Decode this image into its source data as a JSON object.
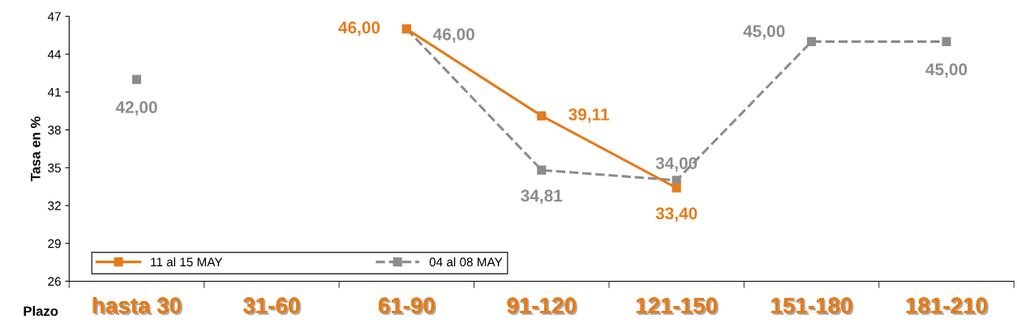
{
  "chart_data": {
    "type": "line",
    "xlabel": "Plazo",
    "ylabel": "Tasa en %",
    "categories": [
      "hasta 30",
      "31-60",
      "61-90",
      "91-120",
      "121-150",
      "151-180",
      "181-210"
    ],
    "ylim": [
      26,
      47
    ],
    "yticks": [
      26,
      29,
      32,
      35,
      38,
      41,
      44,
      47
    ],
    "series": [
      {
        "name": "11 al 15 MAY",
        "color": "#e37c1a",
        "line_style": "solid",
        "values": [
          null,
          null,
          46.0,
          39.11,
          33.4,
          null,
          null
        ],
        "value_labels": [
          null,
          null,
          "46,00",
          "39,11",
          "33,40",
          null,
          null
        ]
      },
      {
        "name": "04 al 08 MAY",
        "color": "#8c8c8c",
        "line_style": "dashed",
        "values": [
          42.0,
          null,
          46.0,
          34.81,
          34.0,
          45.0,
          45.0
        ],
        "value_labels": [
          "42,00",
          null,
          "46,00",
          "34,81",
          "34,00",
          "45,00",
          "45,00"
        ]
      }
    ],
    "marker": "square",
    "grid": false,
    "legend": "bottom left"
  }
}
